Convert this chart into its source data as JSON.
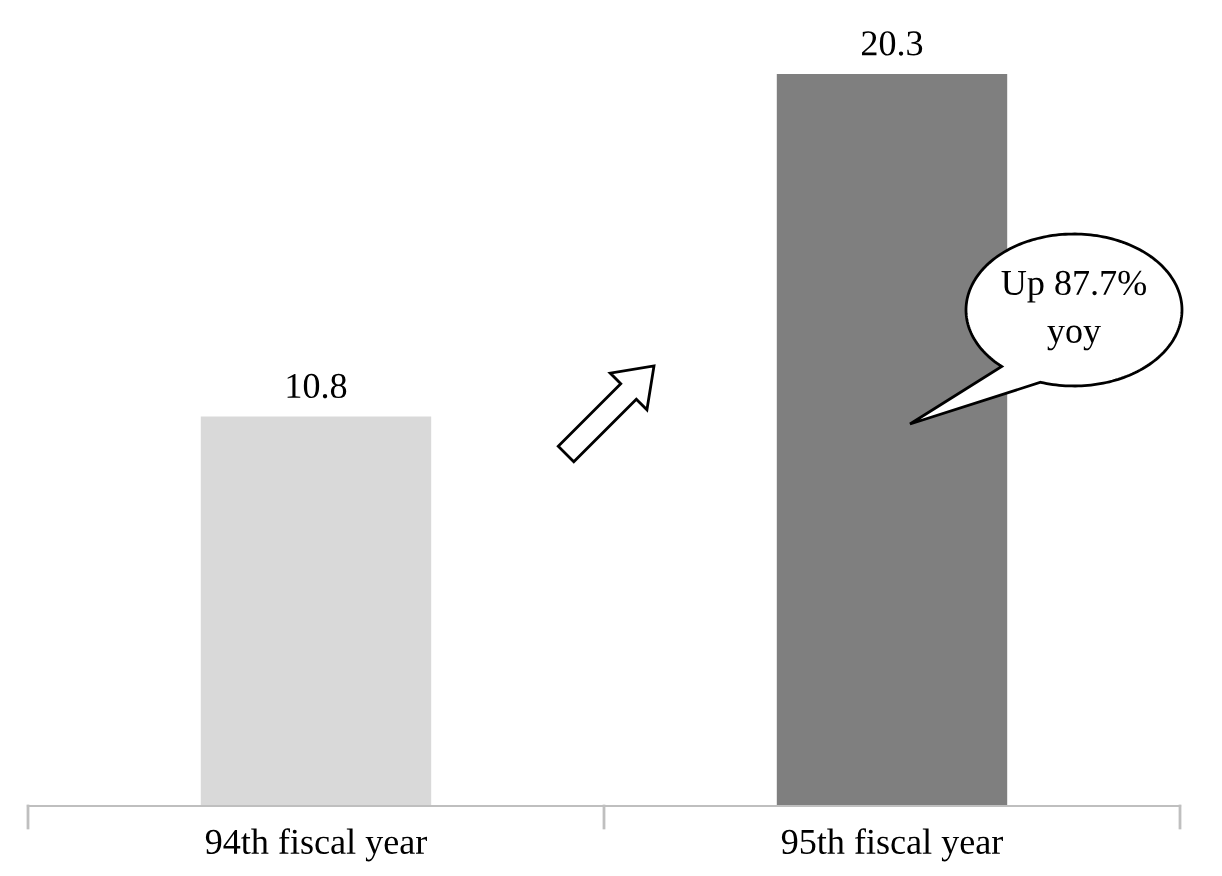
{
  "chart_data": {
    "type": "bar",
    "categories": [
      "94th fiscal year",
      "95th fiscal year"
    ],
    "values": [
      10.8,
      20.3
    ],
    "colors": [
      "#d9d9d9",
      "#7f7f7f"
    ],
    "data_labels": true,
    "annotations": [
      "Up 87.7%\nyoy"
    ]
  }
}
